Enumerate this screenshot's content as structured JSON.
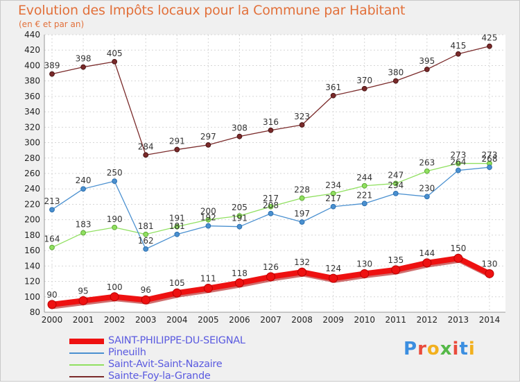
{
  "header": {
    "title": "Evolution des Impôts locaux pour la Commune par Habitant",
    "subtitle": "(en € et par an)"
  },
  "logo": {
    "letters": [
      "P",
      "r",
      "o",
      "x",
      "i",
      "t",
      "i"
    ],
    "colors": [
      "#3b8ee0",
      "#e94b3c",
      "#f2b01e",
      "#55b948",
      "#e94b3c",
      "#3b8ee0",
      "#f2b01e"
    ]
  },
  "chart_data": {
    "type": "line",
    "title": "Evolution des Impôts locaux pour la Commune par Habitant",
    "subtitle": "(en € et par an)",
    "x": [
      "2000",
      "2001",
      "2002",
      "2003",
      "2004",
      "2005",
      "2006",
      "2007",
      "2008",
      "2009",
      "2010",
      "2011",
      "2012",
      "2013",
      "2014"
    ],
    "ylim": [
      80,
      440
    ],
    "yticks": [
      80,
      100,
      120,
      140,
      160,
      180,
      200,
      220,
      240,
      260,
      280,
      300,
      320,
      340,
      360,
      380,
      400,
      420,
      440
    ],
    "grid": true,
    "legend_position": "bottom-left",
    "series": [
      {
        "name": "SAINT-PHILIPPE-DU-SEIGNAL",
        "color": "#ee1111",
        "values": [
          90,
          95,
          100,
          96,
          105,
          111,
          118,
          126,
          132,
          124,
          130,
          135,
          144,
          150,
          130
        ]
      },
      {
        "name": "Pineuilh",
        "color": "#4a90d0",
        "values": [
          213,
          240,
          250,
          162,
          181,
          192,
          191,
          208,
          197,
          217,
          221,
          234,
          230,
          264,
          268
        ]
      },
      {
        "name": "Saint-Avit-Saint-Nazaire",
        "color": "#90e060",
        "values": [
          164,
          183,
          190,
          181,
          191,
          200,
          205,
          217,
          228,
          234,
          244,
          247,
          263,
          273,
          273
        ]
      },
      {
        "name": "Sainte-Foy-la-Grande",
        "color": "#7a2a2a",
        "values": [
          389,
          398,
          405,
          284,
          291,
          297,
          308,
          316,
          323,
          361,
          370,
          380,
          395,
          415,
          425
        ]
      }
    ]
  }
}
